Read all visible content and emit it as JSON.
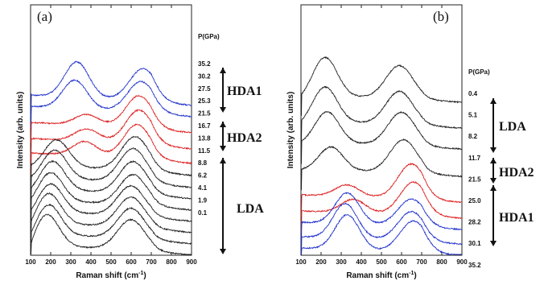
{
  "chart_data": [
    {
      "type": "line",
      "panel_label": "(a)",
      "xlabel": "Raman shift (cm",
      "xlabel_sup": "-1",
      "xlabel_tail": ")",
      "ylabel": "Intensity (arb. units)",
      "xlim": [
        100,
        900
      ],
      "x_ticks": [
        "100",
        "200",
        "300",
        "400",
        "500",
        "600",
        "700",
        "800",
        "900"
      ],
      "pressure_header": "P(GPa)",
      "phases": [
        {
          "label": "HDA1",
          "from_pressure": "30.2",
          "to_pressure": "27.5"
        },
        {
          "label": "HDA2",
          "from_pressure": "25.3",
          "to_pressure": "16.7"
        },
        {
          "label": "LDA",
          "from_pressure": "13.8",
          "to_pressure": "0.1"
        }
      ],
      "series": [
        {
          "pressure": "35.2",
          "color": "#2233cc",
          "peaks": [
            [
              330,
              1.0
            ],
            [
              660,
              0.9
            ]
          ]
        },
        {
          "pressure": "30.2",
          "color": "#2233cc",
          "peaks": [
            [
              320,
              0.8
            ],
            [
              650,
              0.85
            ]
          ]
        },
        {
          "pressure": "27.5",
          "color": "#dd2222",
          "peaks": [
            [
              380,
              0.3
            ],
            [
              640,
              0.9
            ]
          ]
        },
        {
          "pressure": "25.3",
          "color": "#dd2222",
          "peaks": [
            [
              380,
              0.35
            ],
            [
              640,
              0.95
            ]
          ]
        },
        {
          "pressure": "21.5",
          "color": "#dd2222",
          "peaks": [
            [
              370,
              0.4
            ],
            [
              630,
              0.95
            ]
          ]
        },
        {
          "pressure": "16.7",
          "color": "#222222",
          "peaks": [
            [
              230,
              0.75
            ],
            [
              620,
              0.95
            ]
          ]
        },
        {
          "pressure": "13.8",
          "color": "#222222",
          "peaks": [
            [
              220,
              0.8
            ],
            [
              610,
              0.95
            ]
          ]
        },
        {
          "pressure": "11.5",
          "color": "#222222",
          "peaks": [
            [
              210,
              0.8
            ],
            [
              610,
              0.9
            ]
          ]
        },
        {
          "pressure": "8.8",
          "color": "#222222",
          "peaks": [
            [
              200,
              0.8
            ],
            [
              610,
              0.85
            ]
          ]
        },
        {
          "pressure": "6.2",
          "color": "#222222",
          "peaks": [
            [
              200,
              0.8
            ],
            [
              600,
              0.85
            ]
          ]
        },
        {
          "pressure": "4.1",
          "color": "#222222",
          "peaks": [
            [
              190,
              0.85
            ],
            [
              600,
              0.85
            ]
          ]
        },
        {
          "pressure": "1.9",
          "color": "#222222",
          "peaks": [
            [
              190,
              0.85
            ],
            [
              600,
              0.85
            ]
          ]
        },
        {
          "pressure": "0.1",
          "color": "#222222",
          "peaks": [
            [
              180,
              0.9
            ],
            [
              600,
              0.85
            ]
          ]
        }
      ]
    },
    {
      "type": "line",
      "panel_label": "(b)",
      "xlabel": "Raman shift (cm",
      "xlabel_sup": "-1",
      "xlabel_tail": ")",
      "ylabel": "Intensity (arb. units)",
      "xlim": [
        100,
        900
      ],
      "x_ticks": [
        "100",
        "200",
        "300",
        "400",
        "500",
        "600",
        "700",
        "800",
        "900"
      ],
      "pressure_header": "P(GPa)",
      "phases": [
        {
          "label": "LDA",
          "from_pressure": "8.2",
          "to_pressure": "11.7"
        },
        {
          "label": "HDA2",
          "from_pressure": "21.5",
          "to_pressure": "25.0"
        },
        {
          "label": "HDA1",
          "from_pressure": "28.2",
          "to_pressure": "35.2"
        }
      ],
      "series": [
        {
          "pressure": "0.4",
          "color": "#222222",
          "peaks": [
            [
              220,
              1.0
            ],
            [
              590,
              0.85
            ]
          ]
        },
        {
          "pressure": "5.1",
          "color": "#222222",
          "peaks": [
            [
              220,
              0.9
            ],
            [
              590,
              0.85
            ]
          ]
        },
        {
          "pressure": "8.2",
          "color": "#222222",
          "peaks": [
            [
              230,
              0.8
            ],
            [
              600,
              0.85
            ]
          ]
        },
        {
          "pressure": "11.7",
          "color": "#222222",
          "peaks": [
            [
              250,
              0.6
            ],
            [
              610,
              0.85
            ]
          ]
        },
        {
          "pressure": "21.5",
          "color": "#dd2222",
          "peaks": [
            [
              330,
              0.3
            ],
            [
              650,
              0.9
            ]
          ]
        },
        {
          "pressure": "25.0",
          "color": "#dd2222",
          "peaks": [
            [
              360,
              0.35
            ],
            [
              660,
              0.85
            ]
          ]
        },
        {
          "pressure": "28.2",
          "color": "#2233cc",
          "peaks": [
            [
              330,
              0.8
            ],
            [
              650,
              0.7
            ]
          ]
        },
        {
          "pressure": "30.1",
          "color": "#2233cc",
          "peaks": [
            [
              320,
              0.9
            ],
            [
              650,
              0.75
            ]
          ]
        },
        {
          "pressure": "35.2",
          "color": "#2233cc",
          "peaks": [
            [
              330,
              0.9
            ],
            [
              660,
              0.8
            ]
          ]
        }
      ]
    }
  ]
}
